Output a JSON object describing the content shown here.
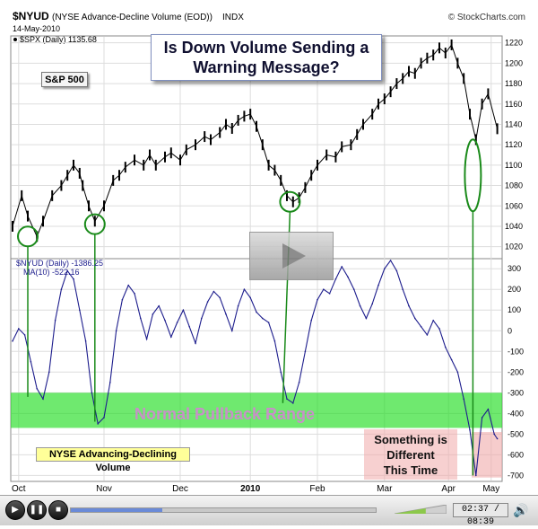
{
  "header": {
    "symbol": "$NYUD",
    "name": "(NYSE Advance-Decline Volume (EOD))",
    "exchange": "INDX",
    "date": "14-May-2010",
    "copyright": "© StockCharts.com",
    "price_legend": "$SPX (Daily) 1135.68"
  },
  "annotations": {
    "headline_line1": "Is Down Volume Sending a",
    "headline_line2": "Warning Message?",
    "sp_label": "S&P 500",
    "pullback_label": "Normal Pullback Range",
    "nyse_label": "NYSE Advancing-Declining Volume",
    "diff_line1": "Something is",
    "diff_line2": "Different",
    "diff_line3": "This Time"
  },
  "player": {
    "time": "02:37 / 08:39",
    "progress": 0.3,
    "volume_level": 0.6
  },
  "colors": {
    "price_line": "#000000",
    "nyud_line": "#1c1c8c",
    "ma_line": "#8080c0",
    "highlight_green": "#22dd22",
    "ellipse_green": "#1a8a1a",
    "pink_box": "#f0aaaa",
    "grid": "#dddddd"
  },
  "chart_data": [
    {
      "type": "line",
      "title": "$SPX (Daily) 1135.68",
      "x_ticks": [
        "Oct",
        "Nov",
        "Dec",
        "2010",
        "Feb",
        "Mar",
        "Apr",
        "May"
      ],
      "y_ticks": [
        1020,
        1040,
        1060,
        1080,
        1100,
        1120,
        1140,
        1160,
        1180,
        1200,
        1220
      ],
      "ylim": [
        1010,
        1225
      ],
      "grid": true,
      "series": [
        {
          "name": "$SPX (Daily)",
          "x": [
            0,
            3,
            5,
            8,
            10,
            13,
            16,
            18,
            20,
            22,
            23,
            25,
            27,
            30,
            33,
            35,
            37,
            40,
            43,
            45,
            47,
            50,
            52,
            55,
            57,
            60,
            63,
            65,
            68,
            70,
            72,
            74,
            76,
            78,
            80,
            82,
            84,
            86,
            88,
            90,
            92,
            94,
            96,
            98,
            100,
            103,
            106,
            108,
            111,
            113,
            115,
            118,
            120,
            122,
            124,
            126,
            128,
            130,
            132,
            134,
            136,
            138,
            140,
            142,
            144,
            146,
            148,
            150,
            152,
            154,
            156,
            159
          ],
          "values": [
            1040,
            1070,
            1050,
            1030,
            1045,
            1070,
            1080,
            1090,
            1100,
            1092,
            1080,
            1060,
            1045,
            1060,
            1085,
            1090,
            1098,
            1105,
            1100,
            1110,
            1100,
            1108,
            1112,
            1105,
            1115,
            1120,
            1128,
            1125,
            1132,
            1140,
            1136,
            1144,
            1148,
            1150,
            1138,
            1120,
            1100,
            1095,
            1085,
            1070,
            1064,
            1068,
            1078,
            1090,
            1100,
            1110,
            1108,
            1118,
            1120,
            1130,
            1140,
            1150,
            1160,
            1165,
            1172,
            1180,
            1185,
            1192,
            1190,
            1200,
            1205,
            1208,
            1215,
            1210,
            1218,
            1200,
            1185,
            1150,
            1125,
            1160,
            1170,
            1135.68
          ]
        }
      ]
    },
    {
      "type": "line",
      "title": "$NYUD (Daily) -1386.25",
      "x_ticks": [
        "Oct",
        "Nov",
        "Dec",
        "2010",
        "Feb",
        "Mar",
        "Apr",
        "May"
      ],
      "y_ticks": [
        -700,
        -600,
        -500,
        -400,
        -300,
        -200,
        -100,
        0,
        100,
        200,
        300
      ],
      "ylim": [
        -720,
        340
      ],
      "grid": true,
      "series": [
        {
          "name": "MA(10) -522.16",
          "x": [
            0,
            2,
            4,
            6,
            8,
            10,
            12,
            14,
            16,
            18,
            20,
            22,
            24,
            26,
            28,
            30,
            32,
            34,
            36,
            38,
            40,
            42,
            44,
            46,
            48,
            50,
            52,
            54,
            56,
            58,
            60,
            62,
            64,
            66,
            68,
            70,
            72,
            74,
            76,
            78,
            80,
            82,
            84,
            86,
            88,
            90,
            92,
            94,
            96,
            98,
            100,
            102,
            104,
            106,
            108,
            110,
            112,
            114,
            116,
            118,
            120,
            122,
            124,
            126,
            128,
            130,
            132,
            134,
            136,
            138,
            140,
            142,
            144,
            146,
            148,
            150,
            152,
            154,
            156,
            158,
            159
          ],
          "values": [
            -50,
            10,
            -20,
            -150,
            -280,
            -330,
            -200,
            50,
            200,
            290,
            250,
            100,
            -50,
            -300,
            -450,
            -420,
            -250,
            0,
            150,
            220,
            180,
            60,
            -40,
            80,
            120,
            50,
            -30,
            40,
            100,
            20,
            -60,
            60,
            140,
            190,
            160,
            80,
            0,
            120,
            200,
            160,
            90,
            60,
            40,
            -50,
            -200,
            -330,
            -350,
            -250,
            -100,
            50,
            150,
            200,
            180,
            250,
            310,
            260,
            200,
            120,
            60,
            130,
            220,
            300,
            340,
            290,
            200,
            120,
            60,
            20,
            -20,
            50,
            10,
            -80,
            -140,
            -200,
            -330,
            -480,
            -700,
            -420,
            -380,
            -500,
            -522.16
          ]
        }
      ]
    }
  ]
}
